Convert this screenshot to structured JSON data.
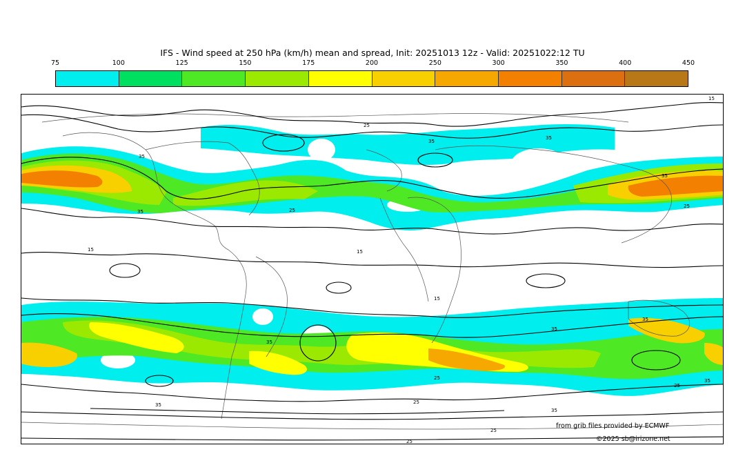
{
  "title": "IFS - Wind speed at 250 hPa (km/h) mean and spread, Init: 20251013 12z - Valid: 20251022:12 TU",
  "colorbar": {
    "ticks": [
      "75",
      "100",
      "125",
      "150",
      "175",
      "200",
      "250",
      "300",
      "350",
      "400",
      "450"
    ],
    "colors": [
      "#00eeee",
      "#00e060",
      "#4ee825",
      "#9be800",
      "#ffff00",
      "#f8d000",
      "#f6a800",
      "#f48000",
      "#dc7010",
      "#b87818",
      "#9a6010"
    ]
  },
  "contour_labels": [
    "15",
    "25",
    "35"
  ],
  "credits": {
    "source": "from grib files provided by ECMWF",
    "copyright": "©2025 sb@irizone.net"
  }
}
